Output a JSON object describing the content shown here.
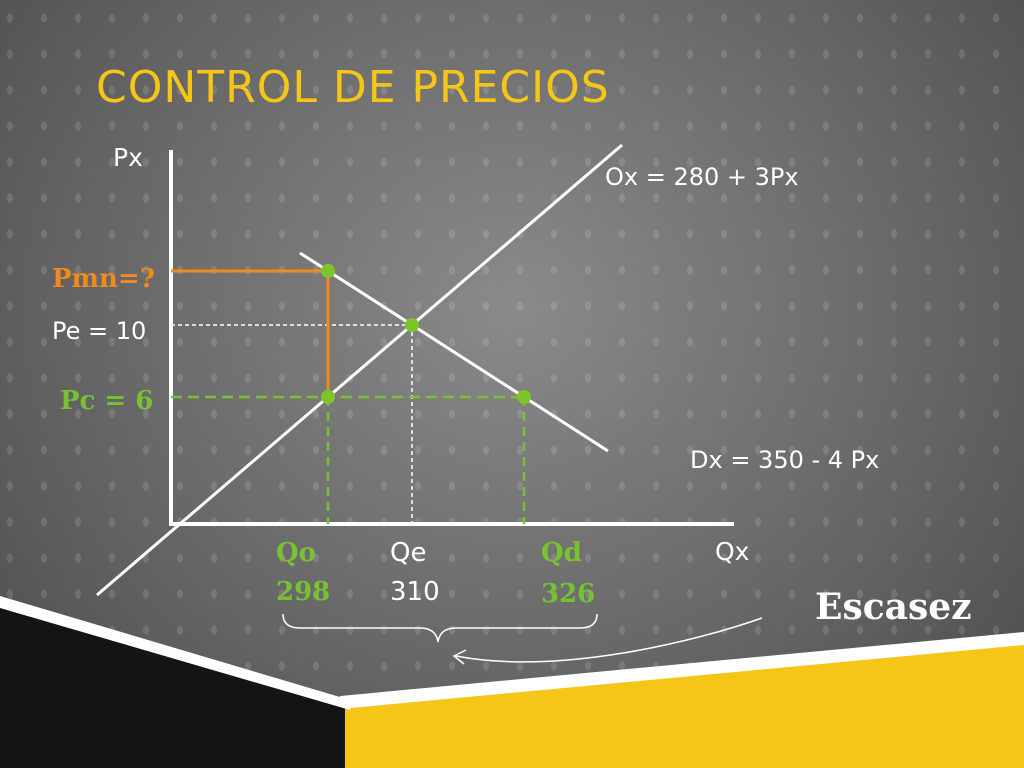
{
  "title": "CONTROL DE PRECIOS",
  "colors": {
    "title": "#f5c518",
    "axis": "#ffffff",
    "orange": "#f08a1c",
    "green": "#77c232",
    "point": "#7cc52a",
    "yellow_band": "#f5c518"
  },
  "chart_data": {
    "type": "line",
    "xlabel": "Qx",
    "ylabel": "Px",
    "series": [
      {
        "name": "Ox = 280 + 3Px",
        "kind": "supply",
        "x": [
          265,
          340
        ],
        "y": [
          -5,
          20
        ]
      },
      {
        "name": "Dx = 350 - 4 Px",
        "kind": "demand",
        "x": [
          294,
          338
        ],
        "y": [
          14,
          3
        ]
      }
    ],
    "equilibrium": {
      "price_label": "Pe = 10",
      "qty_label": "Qe",
      "qty_value": "310",
      "q": 310,
      "p": 10
    },
    "price_control": {
      "price_label": "Pc = 6",
      "p": 6
    },
    "price_min": {
      "price_label": "Pmn=?",
      "p": 13
    },
    "quantity_offered": {
      "label": "Qo",
      "value": "298",
      "q": 298
    },
    "quantity_demanded": {
      "label": "Qd",
      "value": "326",
      "q": 326
    },
    "annotation": "Escasez"
  }
}
